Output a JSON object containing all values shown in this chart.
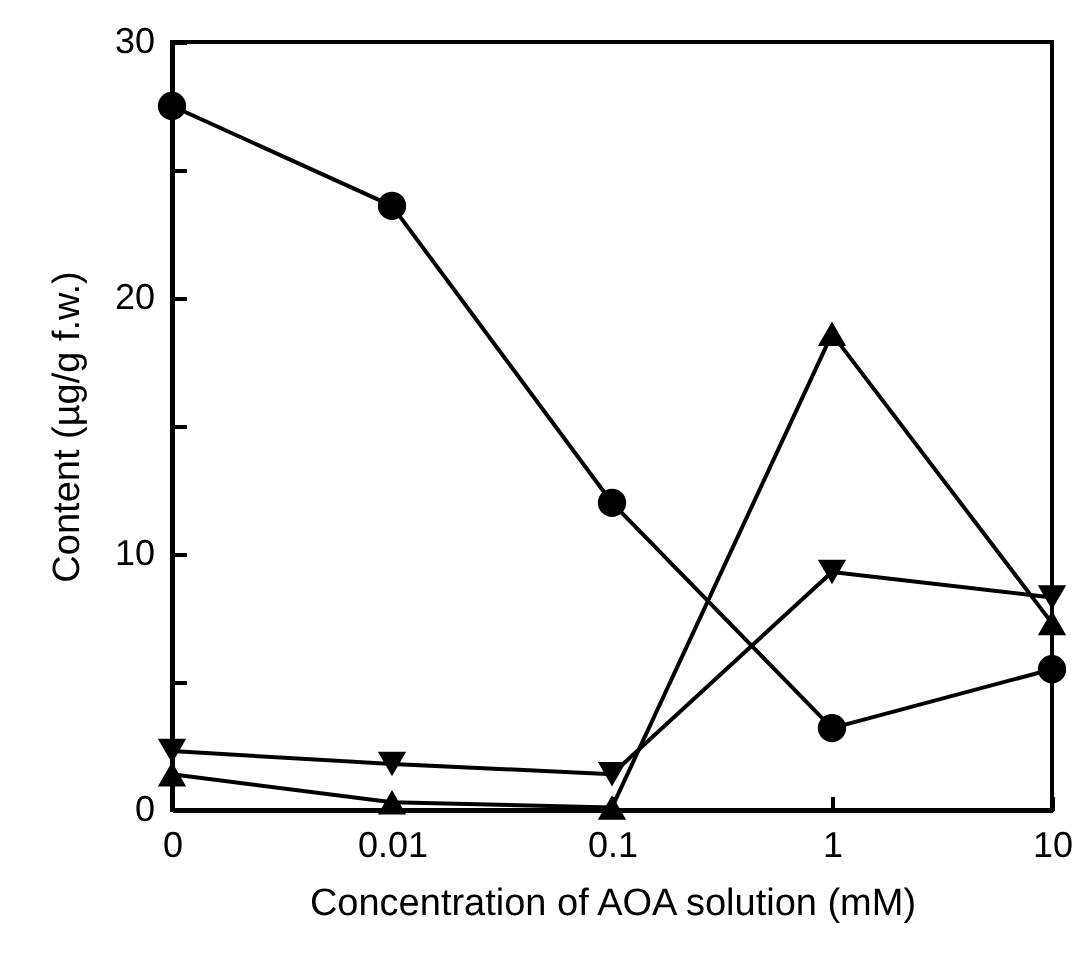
{
  "chart_data": {
    "type": "line",
    "xlabel": "Concentration of AOA solution (mM)",
    "ylabel": "Content (µg/g f.w.)",
    "categories": [
      "0",
      "0.01",
      "0.1",
      "1",
      "10"
    ],
    "ylim": [
      0,
      30
    ],
    "yticks": [
      0,
      {
        "value": 5,
        "label": null
      },
      10,
      {
        "value": 15,
        "label": null
      },
      20,
      {
        "value": 25,
        "label": null
      },
      30
    ],
    "line_style": "solid",
    "series": [
      {
        "color": "#000000",
        "marker": "circle",
        "values": [
          27.5,
          23.6,
          12.0,
          3.2,
          5.5
        ]
      },
      {
        "color": "#000000",
        "marker": "triangle-down",
        "values": [
          2.3,
          1.8,
          1.4,
          9.3,
          8.3
        ]
      },
      {
        "color": "#000000",
        "marker": "triangle",
        "values": [
          1.4,
          0.3,
          0.1,
          18.6,
          7.3
        ]
      }
    ]
  }
}
